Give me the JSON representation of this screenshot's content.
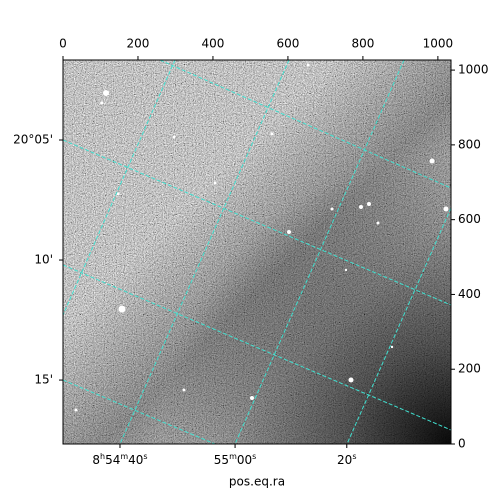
{
  "chart_data": {
    "type": "image",
    "xlabel": "pos.eq.ra",
    "xlim": [
      0,
      1035
    ],
    "ylim": [
      0,
      1027
    ],
    "xticks": [
      0,
      200,
      400,
      600,
      800,
      1000
    ],
    "yticks": [
      0,
      200,
      400,
      600,
      800,
      1000
    ],
    "ra_ticks": [
      {
        "value": 152,
        "label": "8h54m40s"
      },
      {
        "value": 459,
        "label": "55m00s"
      },
      {
        "value": 757,
        "label": "20s"
      }
    ],
    "dec_ticks": [
      {
        "value": 813,
        "label": "20°05'"
      },
      {
        "value": 492,
        "label": "10'"
      },
      {
        "value": 171,
        "label": "15'"
      }
    ]
  }
}
